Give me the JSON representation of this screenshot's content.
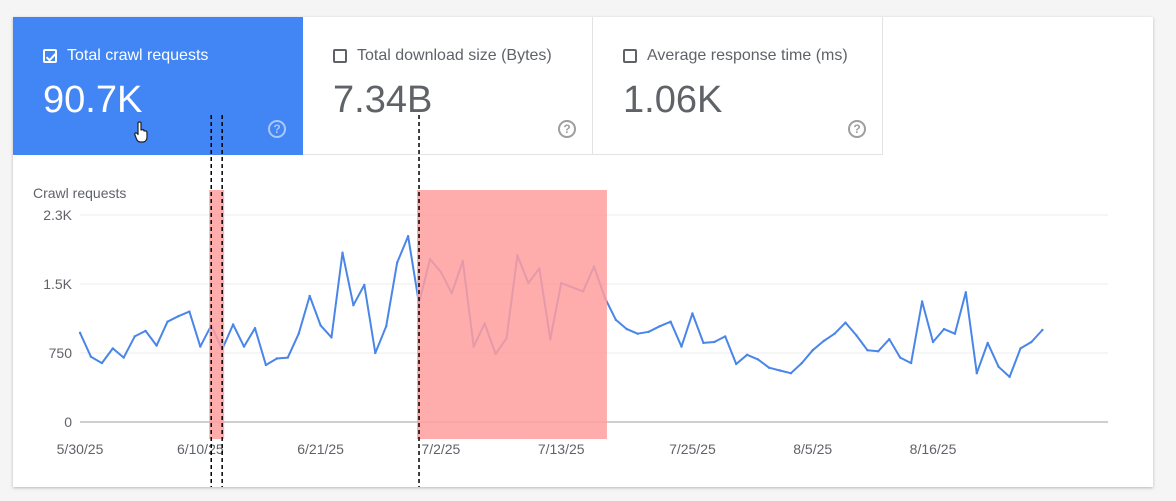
{
  "tiles": [
    {
      "label": "Total crawl requests",
      "value": "90.7K",
      "checked": true
    },
    {
      "label": "Total download size (Bytes)",
      "value": "7.34B",
      "checked": false
    },
    {
      "label": "Average response time (ms)",
      "value": "1.06K",
      "checked": false
    }
  ],
  "colors": {
    "accent": "#4285f4",
    "line": "#4a86e8",
    "highlight": "#ff9e9e",
    "axis": "#5f6368"
  },
  "icons": {
    "checkbox": "checkbox-icon",
    "help": "help-icon",
    "cursor": "hand-cursor-icon"
  },
  "chart_data": {
    "type": "line",
    "ylabel": "Crawl requests",
    "yticks": [
      "0",
      "750",
      "1.5K",
      "2.3K"
    ],
    "ytick_values": [
      0,
      750,
      1500,
      2250
    ],
    "ylim": [
      0,
      2250
    ],
    "xlim": [
      "2025-05-30",
      "2025-09-01"
    ],
    "xticks": [
      {
        "date": "2025-05-30",
        "label": "5/30/25"
      },
      {
        "date": "2025-06-10",
        "label": "6/10/25"
      },
      {
        "date": "2025-06-21",
        "label": "6/21/25"
      },
      {
        "date": "2025-07-02",
        "label": "7/2/25"
      },
      {
        "date": "2025-07-13",
        "label": "7/13/25"
      },
      {
        "date": "2025-07-25",
        "label": "7/25/25"
      },
      {
        "date": "2025-08-05",
        "label": "8/5/25"
      },
      {
        "date": "2025-08-16",
        "label": "8/16/25"
      }
    ],
    "grid": true,
    "series": [
      {
        "values": [
          [
            "2025-05-30",
            970
          ],
          [
            "2025-05-31",
            710
          ],
          [
            "2025-06-01",
            640
          ],
          [
            "2025-06-02",
            800
          ],
          [
            "2025-06-03",
            700
          ],
          [
            "2025-06-04",
            930
          ],
          [
            "2025-06-05",
            990
          ],
          [
            "2025-06-06",
            830
          ],
          [
            "2025-06-07",
            1090
          ],
          [
            "2025-06-08",
            1150
          ],
          [
            "2025-06-09",
            1200
          ],
          [
            "2025-06-10",
            820
          ],
          [
            "2025-06-11",
            1050
          ],
          [
            "2025-06-12",
            790
          ],
          [
            "2025-06-13",
            1060
          ],
          [
            "2025-06-14",
            820
          ],
          [
            "2025-06-15",
            1020
          ],
          [
            "2025-06-16",
            620
          ],
          [
            "2025-06-17",
            690
          ],
          [
            "2025-06-18",
            700
          ],
          [
            "2025-06-19",
            960
          ],
          [
            "2025-06-20",
            1370
          ],
          [
            "2025-06-21",
            1050
          ],
          [
            "2025-06-22",
            920
          ],
          [
            "2025-06-23",
            1840
          ],
          [
            "2025-06-24",
            1270
          ],
          [
            "2025-06-25",
            1490
          ],
          [
            "2025-06-26",
            750
          ],
          [
            "2025-06-27",
            1040
          ],
          [
            "2025-06-28",
            1730
          ],
          [
            "2025-06-29",
            2020
          ],
          [
            "2025-06-30",
            1290
          ],
          [
            "2025-07-01",
            1770
          ],
          [
            "2025-07-02",
            1630
          ],
          [
            "2025-07-03",
            1400
          ],
          [
            "2025-07-04",
            1750
          ],
          [
            "2025-07-05",
            820
          ],
          [
            "2025-07-06",
            1070
          ],
          [
            "2025-07-07",
            740
          ],
          [
            "2025-07-08",
            910
          ],
          [
            "2025-07-09",
            1810
          ],
          [
            "2025-07-10",
            1510
          ],
          [
            "2025-07-11",
            1670
          ],
          [
            "2025-07-12",
            900
          ],
          [
            "2025-07-13",
            1510
          ],
          [
            "2025-07-15",
            1420
          ],
          [
            "2025-07-16",
            1690
          ],
          [
            "2025-07-17",
            1350
          ],
          [
            "2025-07-18",
            1110
          ],
          [
            "2025-07-19",
            1010
          ],
          [
            "2025-07-20",
            960
          ],
          [
            "2025-07-21",
            980
          ],
          [
            "2025-07-22",
            1040
          ],
          [
            "2025-07-23",
            1090
          ],
          [
            "2025-07-24",
            820
          ],
          [
            "2025-07-25",
            1180
          ],
          [
            "2025-07-26",
            860
          ],
          [
            "2025-07-27",
            870
          ],
          [
            "2025-07-28",
            930
          ],
          [
            "2025-07-29",
            630
          ],
          [
            "2025-07-30",
            730
          ],
          [
            "2025-07-31",
            680
          ],
          [
            "2025-08-01",
            590
          ],
          [
            "2025-08-02",
            560
          ],
          [
            "2025-08-03",
            530
          ],
          [
            "2025-08-04",
            640
          ],
          [
            "2025-08-05",
            780
          ],
          [
            "2025-08-06",
            880
          ],
          [
            "2025-08-07",
            960
          ],
          [
            "2025-08-08",
            1080
          ],
          [
            "2025-08-09",
            940
          ],
          [
            "2025-08-10",
            780
          ],
          [
            "2025-08-11",
            770
          ],
          [
            "2025-08-12",
            900
          ],
          [
            "2025-08-13",
            700
          ],
          [
            "2025-08-14",
            640
          ],
          [
            "2025-08-15",
            1310
          ],
          [
            "2025-08-16",
            870
          ],
          [
            "2025-08-17",
            1010
          ],
          [
            "2025-08-18",
            960
          ],
          [
            "2025-08-19",
            1410
          ],
          [
            "2025-08-20",
            530
          ],
          [
            "2025-08-21",
            860
          ],
          [
            "2025-08-22",
            600
          ],
          [
            "2025-08-23",
            490
          ],
          [
            "2025-08-24",
            800
          ],
          [
            "2025-08-25",
            870
          ],
          [
            "2025-08-26",
            1000
          ]
        ]
      }
    ],
    "highlight_ranges": [
      {
        "start": "2025-06-11",
        "end": "2025-06-12"
      },
      {
        "start": "2025-06-30",
        "end": "2025-07-17"
      }
    ],
    "dashed_markers": [
      "2025-06-11",
      "2025-06-12",
      "2025-06-30"
    ]
  }
}
